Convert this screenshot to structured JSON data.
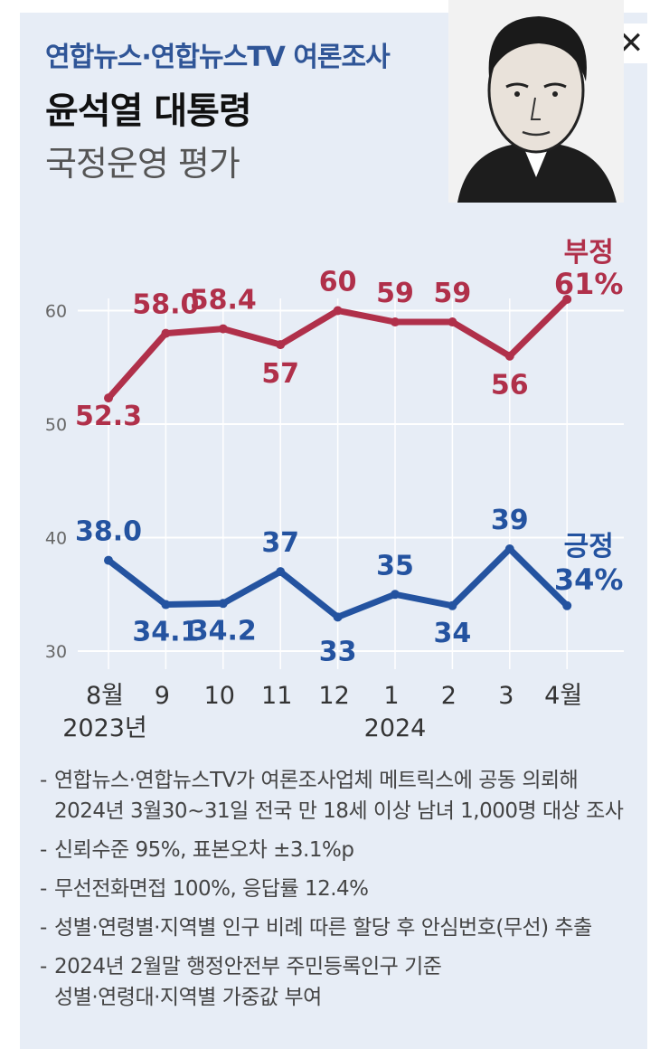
{
  "header": {
    "source": "연합뉴스·연합뉴스TV 여론조사",
    "title": "윤석열 대통령",
    "subtitle": "국정운영 평가"
  },
  "close_icon": "close-icon",
  "colors": {
    "negative": "#b0304a",
    "positive": "#2453a0",
    "grid": "#ffffff",
    "background": "#e7edf6"
  },
  "chart_data": {
    "type": "line",
    "categories": [
      "8월",
      "9",
      "10",
      "11",
      "12",
      "1",
      "2",
      "3",
      "4월"
    ],
    "year_labels": [
      "2023년",
      "2024"
    ],
    "ylim": [
      30,
      63
    ],
    "yticks": [
      30,
      40,
      50,
      60
    ],
    "grid": true,
    "series": [
      {
        "name": "부정",
        "values": [
          52.3,
          58.0,
          58.4,
          57,
          60,
          59,
          59,
          56,
          61
        ],
        "labels": [
          "52.3",
          "58.0",
          "58.4",
          "57",
          "60",
          "59",
          "59",
          "56",
          ""
        ],
        "end_label": "61%"
      },
      {
        "name": "긍정",
        "values": [
          38.0,
          34.1,
          34.2,
          37,
          33,
          35,
          34,
          39,
          34
        ],
        "labels": [
          "38.0",
          "34.1",
          "34.2",
          "37",
          "33",
          "35",
          "34",
          "39",
          ""
        ],
        "end_label": "34%"
      }
    ]
  },
  "notes": [
    "연합뉴스·연합뉴스TV가 여론조사업체 메트릭스에 공동 의뢰해\n2024년 3월30~31일 전국 만 18세 이상 남녀 1,000명 대상 조사",
    "신뢰수준 95%, 표본오차 ±3.1%p",
    "무선전화면접 100%, 응답률 12.4%",
    "성별·연령별·지역별 인구 비례 따른 할당 후 안심번호(무선) 추출",
    "2024년 2월말 행정안전부 주민등록인구 기준\n성별·연령대·지역별 가중값 부여"
  ]
}
